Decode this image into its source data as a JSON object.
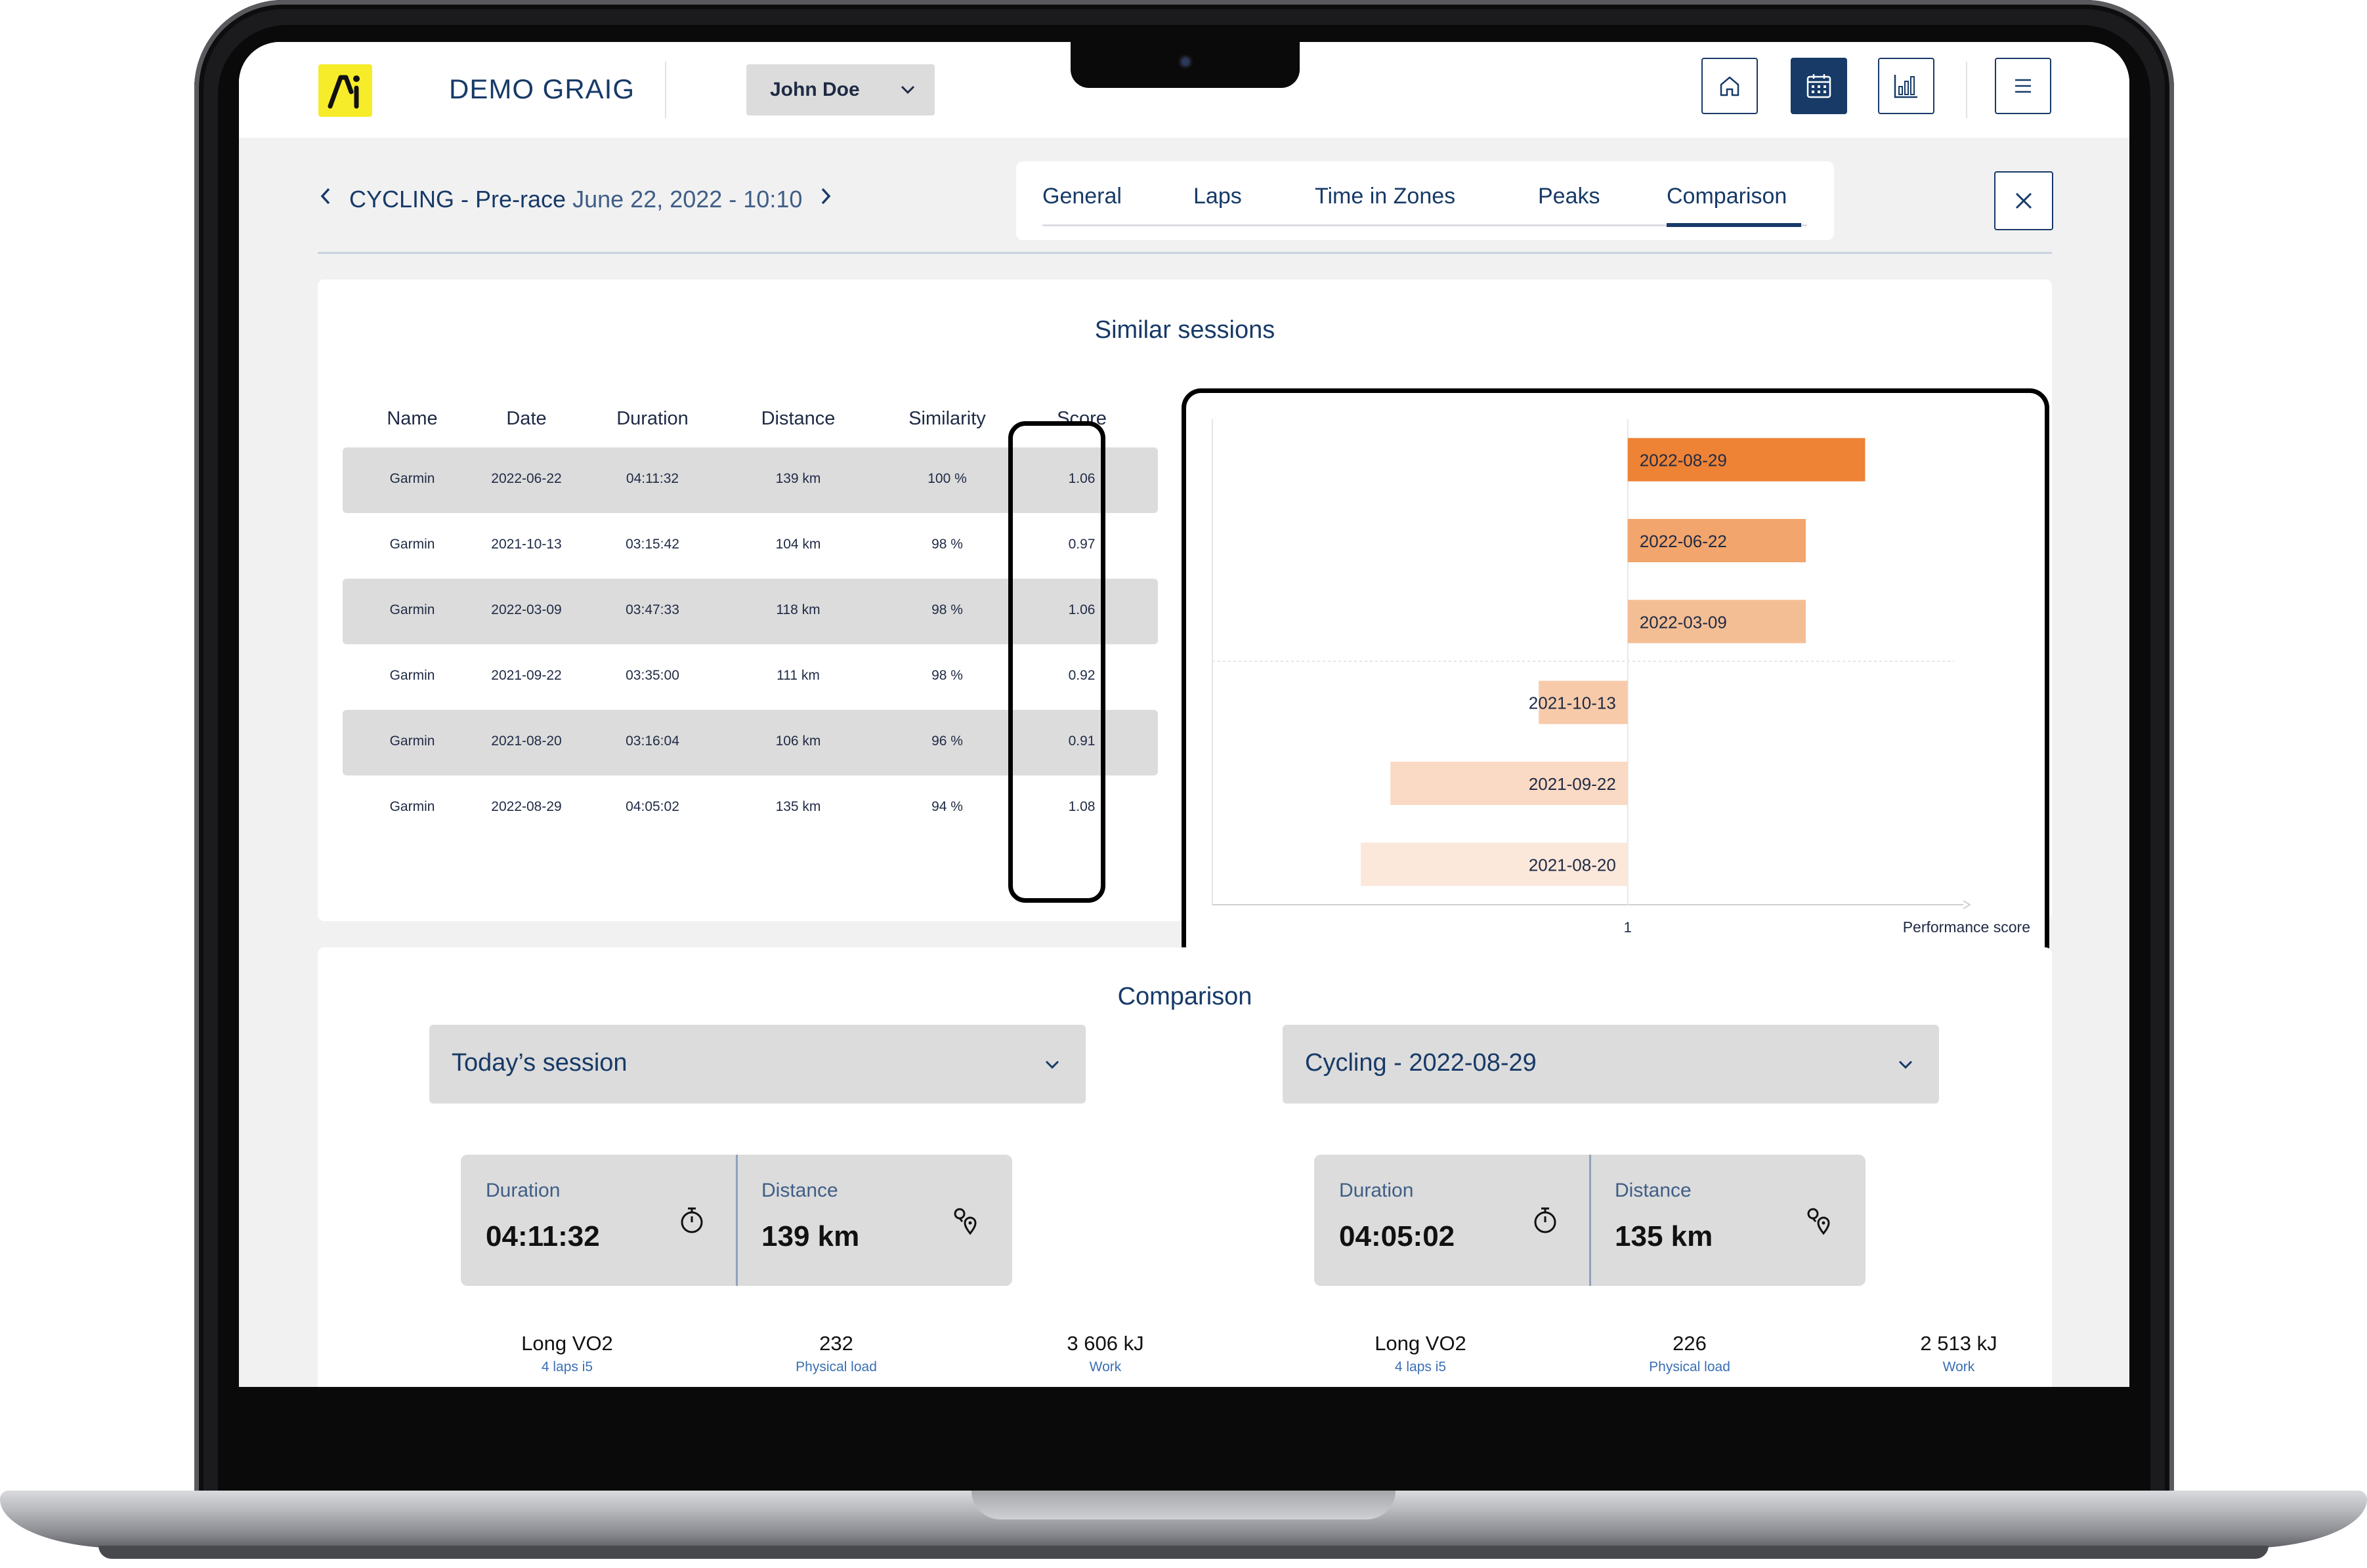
{
  "header": {
    "brand": "DEMO GRAIG",
    "athlete": "John Doe",
    "buttons": [
      "home-icon",
      "calendar-icon",
      "chart-icon",
      "menu-icon"
    ]
  },
  "session": {
    "sport": "CYCLING - Pre-race",
    "datetime": "June 22, 2022 - 10:10"
  },
  "tabs": [
    {
      "label": "General"
    },
    {
      "label": "Laps"
    },
    {
      "label": "Time in Zones"
    },
    {
      "label": "Peaks"
    },
    {
      "label": "Comparison",
      "active": true
    }
  ],
  "similar": {
    "title": "Similar sessions",
    "columns": [
      "Name",
      "Date",
      "Duration",
      "Distance",
      "Similarity",
      "Score"
    ],
    "rows": [
      [
        "Garmin",
        "2022-06-22",
        "04:11:32",
        "139 km",
        "100 %",
        "1.06"
      ],
      [
        "Garmin",
        "2021-10-13",
        "03:15:42",
        "104 km",
        "98 %",
        "0.97"
      ],
      [
        "Garmin",
        "2022-03-09",
        "03:47:33",
        "118 km",
        "98 %",
        "1.06"
      ],
      [
        "Garmin",
        "2021-09-22",
        "03:35:00",
        "111 km",
        "98 %",
        "0.92"
      ],
      [
        "Garmin",
        "2021-08-20",
        "03:16:04",
        "106 km",
        "96 %",
        "0.91"
      ],
      [
        "Garmin",
        "2022-08-29",
        "04:05:02",
        "135 km",
        "94 %",
        "1.08"
      ]
    ]
  },
  "chart_data": {
    "type": "bar",
    "orientation": "horizontal",
    "baseline": 1,
    "categories": [
      "2022-08-29",
      "2022-06-22",
      "2022-03-09",
      "2021-10-13",
      "2021-09-22",
      "2021-08-20"
    ],
    "values": [
      1.08,
      1.06,
      1.06,
      0.97,
      0.92,
      0.91
    ],
    "colors": [
      "#ee8235",
      "#f2a56c",
      "#f4be95",
      "#f7cbaa",
      "#fadac4",
      "#fce8db"
    ],
    "xtick": "1",
    "xlabel": "Performance score",
    "xlim": [
      0.86,
      1.11
    ]
  },
  "comparison": {
    "title": "Comparison",
    "left": {
      "select": "Today’s session",
      "duration_label": "Duration",
      "duration": "04:11:32",
      "distance_label": "Distance",
      "distance": "139 km",
      "metrics": [
        {
          "value": "Long VO2",
          "sub": "4 laps i5"
        },
        {
          "value": "232",
          "sub": "Physical load"
        },
        {
          "value": "3 606 kJ",
          "sub": "Work"
        }
      ]
    },
    "right": {
      "select": "Cycling - 2022-08-29",
      "duration_label": "Duration",
      "duration": "04:05:02",
      "distance_label": "Distance",
      "distance": "135 km",
      "metrics": [
        {
          "value": "Long VO2",
          "sub": "4 laps i5"
        },
        {
          "value": "226",
          "sub": "Physical load"
        },
        {
          "value": "2 513 kJ",
          "sub": "Work"
        }
      ]
    }
  },
  "colors": {
    "navy": "#173a67",
    "logo_yellow": "#f6ec2a",
    "row_gray": "#dcdcdc"
  }
}
